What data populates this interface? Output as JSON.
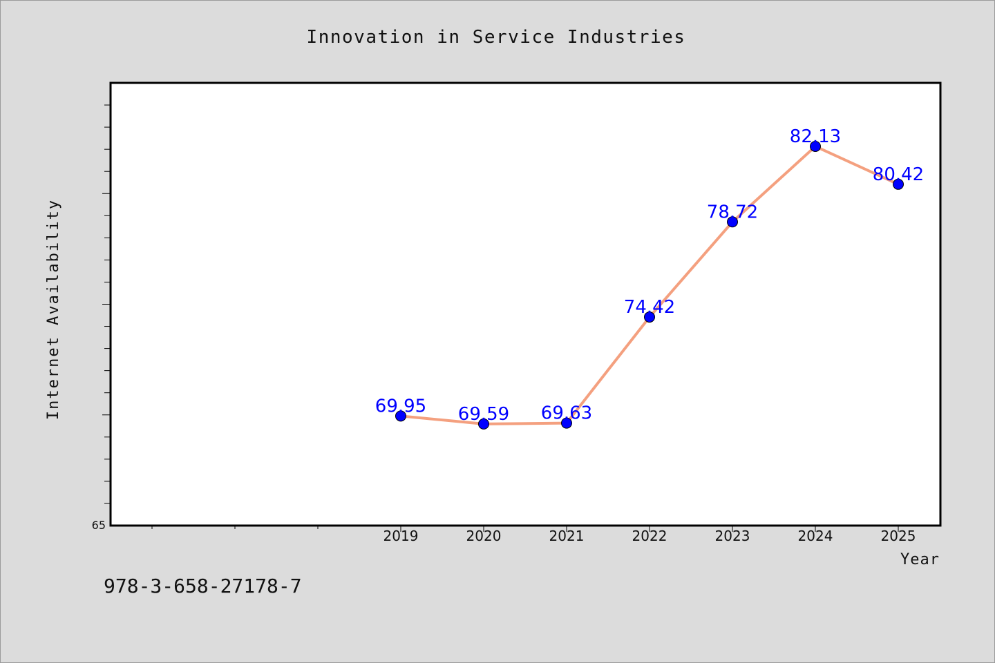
{
  "chart_data": {
    "type": "line",
    "title": "Innovation in Service Industries",
    "xlabel": "Year",
    "ylabel": "Internet Availability",
    "categories": [
      "2019",
      "2020",
      "2021",
      "2022",
      "2023",
      "2024",
      "2025"
    ],
    "x_slots": [
      "",
      "",
      "",
      "2019",
      "2020",
      "2021",
      "2022",
      "2023",
      "2024",
      "2025"
    ],
    "series": [
      {
        "values": [
          69.95,
          69.59,
          69.63,
          74.42,
          78.72,
          82.13,
          80.42
        ],
        "labels": [
          "69.95",
          "69.59",
          "69.63",
          "74.42",
          "78.72",
          "82.13",
          "80.42"
        ]
      }
    ],
    "y_tick_labels": [
      "65"
    ],
    "ylim": [
      65,
      85
    ],
    "grid": false,
    "legend": "none",
    "colors": {
      "line": "#f4a07f",
      "marker": "#0000ff",
      "labels": "#0000ff",
      "plot_background": "#ffffff",
      "figure_background": "#dcdcdc"
    }
  },
  "footer": {
    "isbn": "978-3-658-27178-7"
  }
}
